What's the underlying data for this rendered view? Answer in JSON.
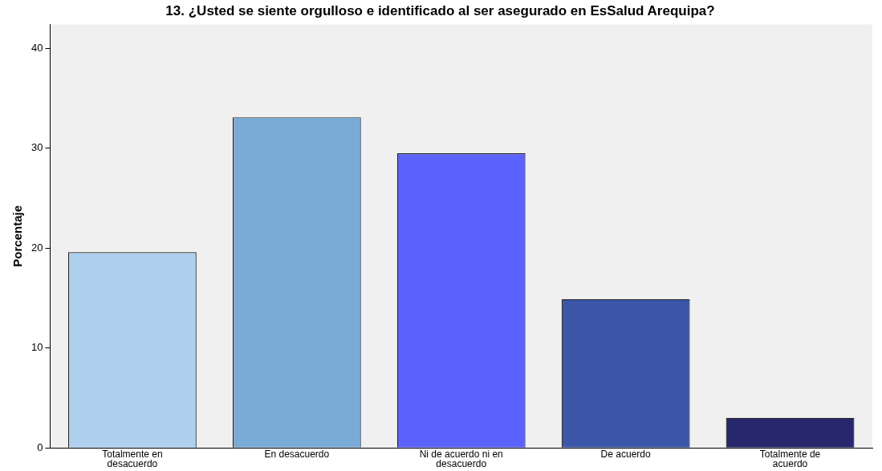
{
  "chart_data": {
    "type": "bar",
    "title": "13. ¿Usted se siente orgulloso e identificado al ser asegurado en EsSalud Arequipa?",
    "ylabel": "Porcentaje",
    "categories": [
      "Totalmente en desacuerdo",
      "En desacuerdo",
      "Ni de acuerdo ni en desacuerdo",
      "De acuerdo",
      "Totalmente de acuerdo"
    ],
    "values": [
      19.6,
      33.1,
      29.5,
      14.9,
      3.0
    ],
    "colors": [
      "#aed0ee",
      "#7aaad6",
      "#5b62fe",
      "#3c56a8",
      "#27276d"
    ],
    "ylim": [
      0,
      42.4
    ],
    "yticks": [
      0,
      10,
      20,
      30,
      40
    ],
    "grid": false,
    "legend": false
  }
}
